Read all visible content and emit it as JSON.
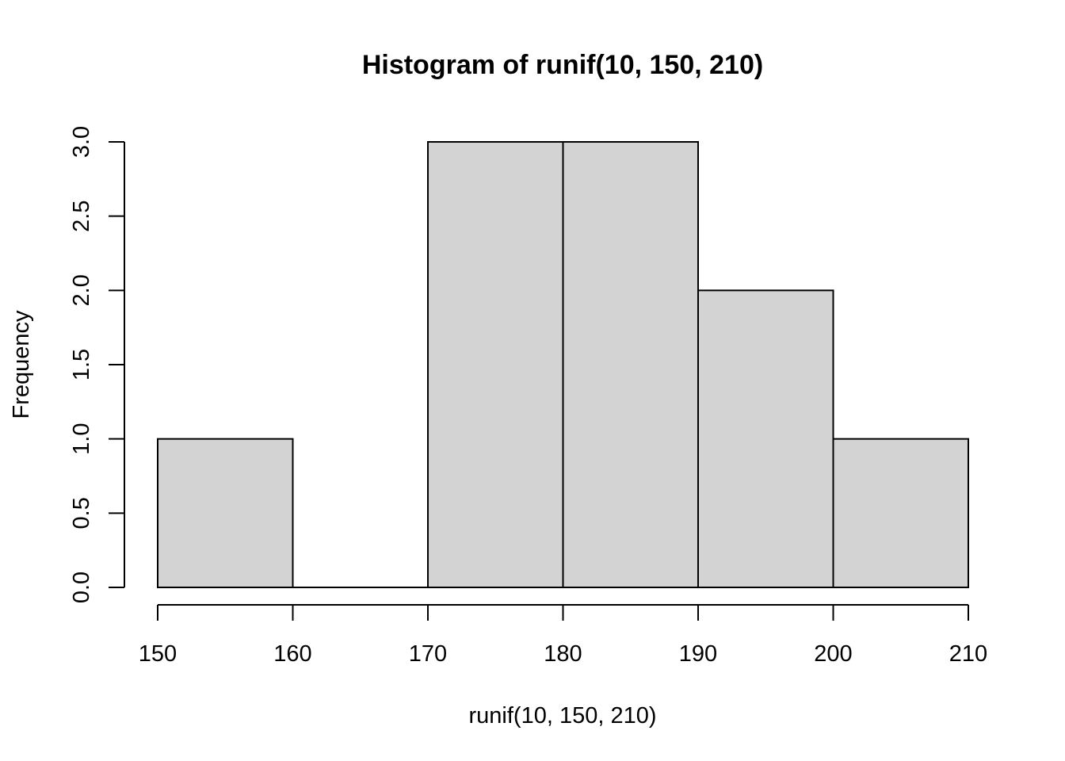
{
  "chart_data": {
    "type": "bar",
    "subtype": "histogram",
    "title": "Histogram of runif(10, 150, 210)",
    "xlabel": "runif(10, 150, 210)",
    "ylabel": "Frequency",
    "bins": [
      {
        "from": 150,
        "to": 160,
        "count": 1
      },
      {
        "from": 160,
        "to": 170,
        "count": 0
      },
      {
        "from": 170,
        "to": 180,
        "count": 3
      },
      {
        "from": 180,
        "to": 190,
        "count": 3
      },
      {
        "from": 190,
        "to": 200,
        "count": 2
      },
      {
        "from": 200,
        "to": 210,
        "count": 1
      }
    ],
    "x_ticks": [
      "150",
      "160",
      "170",
      "180",
      "190",
      "200",
      "210"
    ],
    "y_ticks": [
      "0.0",
      "0.5",
      "1.0",
      "1.5",
      "2.0",
      "2.5",
      "3.0"
    ],
    "xlim": [
      150,
      210
    ],
    "ylim": [
      0,
      3
    ],
    "grid": false,
    "bar_color": "#d3d3d3",
    "edge_color": "#000000"
  }
}
